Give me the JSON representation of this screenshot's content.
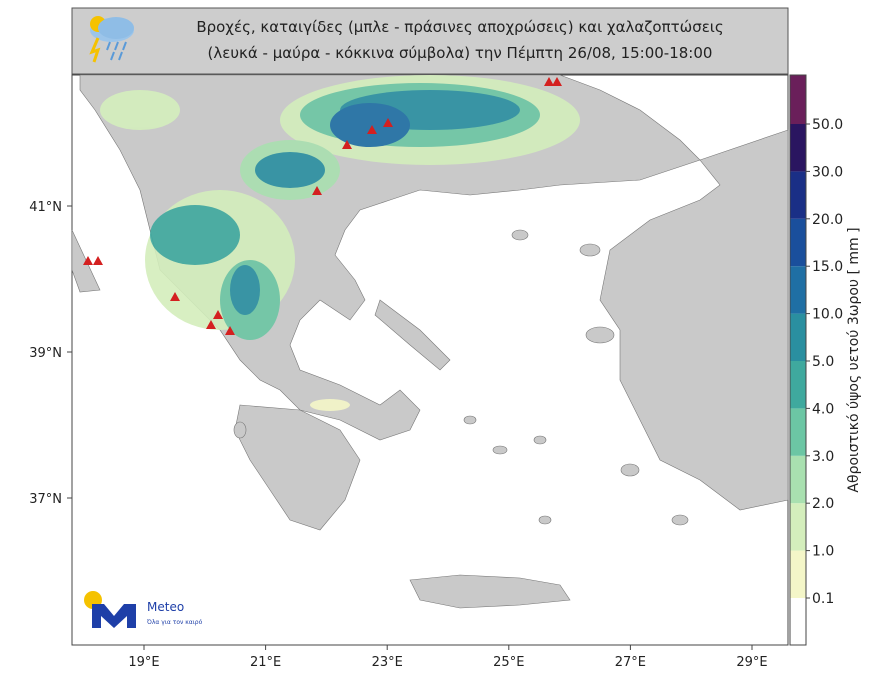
{
  "title": {
    "line1": "Βροχές, καταιγίδες (μπλε - πράσινες αποχρώσεις) και χαλαζοπτώσεις",
    "line2": "(λευκά - μαύρα - κόκκινα σύμβολα) την Πέμπτη 26/08, 15:00-18:00"
  },
  "map": {
    "lon_labels": [
      "19°E",
      "21°E",
      "23°E",
      "25°E",
      "27°E",
      "29°E"
    ],
    "lat_labels": [
      "41°N",
      "39°N",
      "37°N"
    ]
  },
  "colorbar": {
    "title": "Αθροιστικό ύψος υετού 3ωρου [ mm ]",
    "labels": [
      "0.1",
      "1.0",
      "2.0",
      "3.0",
      "4.0",
      "5.0",
      "10.0",
      "15.0",
      "20.0",
      "30.0",
      "50.0"
    ]
  },
  "logo": {
    "name": "Meteo",
    "tagline": "Όλα για τον καιρό"
  }
}
